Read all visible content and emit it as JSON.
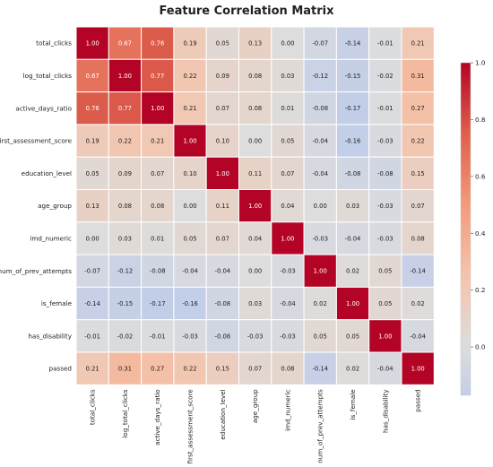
{
  "chart_data": {
    "type": "heatmap",
    "title": "Feature Correlation Matrix",
    "labels": [
      "total_clicks",
      "log_total_clicks",
      "active_days_ratio",
      "first_assessment_score",
      "education_level",
      "age_group",
      "imd_numeric",
      "num_of_prev_attempts",
      "is_female",
      "has_disability",
      "passed"
    ],
    "values": [
      [
        1.0,
        0.67,
        0.76,
        0.19,
        0.05,
        0.13,
        0.0,
        -0.07,
        -0.14,
        -0.01,
        0.21
      ],
      [
        0.67,
        1.0,
        0.77,
        0.22,
        0.09,
        0.08,
        0.03,
        -0.12,
        -0.15,
        -0.02,
        0.31
      ],
      [
        0.76,
        0.77,
        1.0,
        0.21,
        0.07,
        0.08,
        0.01,
        -0.08,
        -0.17,
        -0.01,
        0.27
      ],
      [
        0.19,
        0.22,
        0.21,
        1.0,
        0.1,
        0.0,
        0.05,
        -0.04,
        -0.16,
        -0.03,
        0.22
      ],
      [
        0.05,
        0.09,
        0.07,
        0.1,
        1.0,
        0.11,
        0.07,
        -0.04,
        -0.08,
        -0.08,
        0.15
      ],
      [
        0.13,
        0.08,
        0.08,
        0.0,
        0.11,
        1.0,
        0.04,
        -0.0,
        0.03,
        -0.03,
        0.07
      ],
      [
        0.0,
        0.03,
        0.01,
        0.05,
        0.07,
        0.04,
        1.0,
        -0.03,
        -0.04,
        -0.03,
        0.08
      ],
      [
        -0.07,
        -0.12,
        -0.08,
        -0.04,
        -0.04,
        -0.0,
        -0.03,
        1.0,
        0.02,
        0.05,
        -0.14
      ],
      [
        -0.14,
        -0.15,
        -0.17,
        -0.16,
        -0.08,
        0.03,
        -0.04,
        0.02,
        1.0,
        0.05,
        0.02
      ],
      [
        -0.01,
        -0.02,
        -0.01,
        -0.03,
        -0.08,
        -0.03,
        -0.03,
        0.05,
        0.05,
        1.0,
        -0.04
      ],
      [
        0.21,
        0.31,
        0.27,
        0.22,
        0.15,
        0.07,
        0.08,
        -0.14,
        0.02,
        -0.04,
        1.0
      ]
    ],
    "colormap": "coolwarm",
    "center": 0,
    "colorbar_ticks": [
      "1.0",
      "0.8",
      "0.6",
      "0.4",
      "0.2",
      "0.0"
    ],
    "colorbar_tick_values": [
      1.0,
      0.8,
      0.6,
      0.4,
      0.2,
      0.0
    ],
    "colorbar_range": [
      -0.17,
      1.0
    ]
  }
}
